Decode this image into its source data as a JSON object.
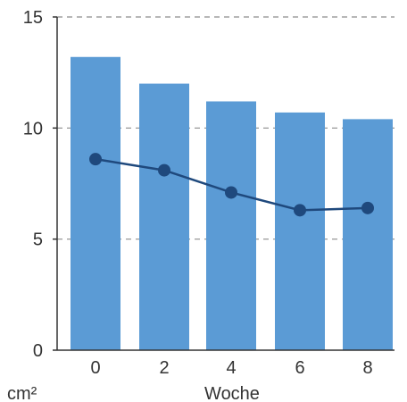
{
  "chart_data": {
    "type": "bar",
    "categories": [
      "0",
      "2",
      "4",
      "6",
      "8"
    ],
    "series": [
      {
        "type": "bar",
        "values": [
          13.2,
          12.0,
          11.2,
          10.7,
          10.4
        ],
        "color": "#5b9bd5"
      },
      {
        "type": "line",
        "values": [
          8.6,
          8.1,
          7.1,
          6.3,
          6.4
        ],
        "color": "#1f497d"
      }
    ],
    "xlabel": "Woche",
    "ylabel": "cm²",
    "ylim": [
      0,
      15
    ],
    "yticks": [
      "0",
      "5",
      "10",
      "15"
    ],
    "grid": true
  }
}
